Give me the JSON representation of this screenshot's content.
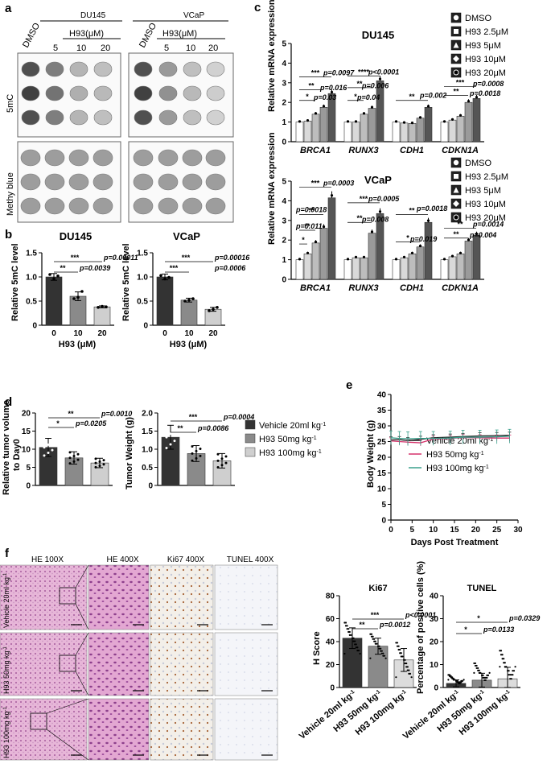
{
  "panels": {
    "a": {
      "label": "a",
      "cell_lines": [
        "DU145",
        "VCaP"
      ],
      "dose_header": "H93(μM)",
      "lane_labels": [
        "DMSO",
        "5",
        "10",
        "20"
      ],
      "row_labels": [
        "5mC",
        "Methy blue"
      ]
    },
    "b": {
      "label": "b",
      "charts": [
        {
          "title": "DU145",
          "ylabel": "Relative 5mC level",
          "xlabel": "H93 (μM)",
          "categories": [
            "0",
            "10",
            "20"
          ],
          "values": [
            1.0,
            0.6,
            0.38
          ],
          "errors": [
            0.07,
            0.09,
            0.02
          ],
          "points": [
            [
              1.05,
              0.96,
              1.02
            ],
            [
              0.55,
              0.58,
              0.7
            ],
            [
              0.37,
              0.39,
              0.38
            ]
          ],
          "yticks": [
            "0",
            "0.5",
            "1.0",
            "1.5"
          ],
          "sig": [
            [
              "**",
              "p=0.0039"
            ],
            [
              "***",
              "p=0.00011"
            ]
          ]
        },
        {
          "title": "VCaP",
          "ylabel": "Relative 5mC level",
          "xlabel": "H93 (μM)",
          "categories": [
            "0",
            "10",
            "20"
          ],
          "values": [
            1.0,
            0.52,
            0.33
          ],
          "errors": [
            0.06,
            0.04,
            0.04
          ],
          "points": [
            [
              1.03,
              0.96,
              0.99
            ],
            [
              0.5,
              0.52,
              0.55
            ],
            [
              0.3,
              0.33,
              0.37
            ]
          ],
          "yticks": [
            "0",
            "0.5",
            "1.0",
            "1.5"
          ],
          "sig": [
            [
              "***",
              "p=0.0006"
            ],
            [
              "***",
              "p=0.00016"
            ]
          ]
        }
      ]
    },
    "c": {
      "label": "c",
      "ylabel": "Relative mRNA expression",
      "legend": [
        "DMSO",
        "H93 2.5μM",
        "H93 5μM",
        "H93 10μM",
        "H93 20μM"
      ],
      "colors": [
        "#ffffff",
        "#d9d9d9",
        "#bdbdbd",
        "#9a9a9a",
        "#555555"
      ],
      "genes": [
        "BRCA1",
        "RUNX3",
        "CDH1",
        "CDKN1A"
      ],
      "charts": [
        {
          "title": "DU145",
          "yticks": [
            "0",
            "1",
            "2",
            "3",
            "4",
            "5"
          ],
          "values": [
            [
              1.0,
              1.05,
              1.4,
              1.75,
              2.45
            ],
            [
              1.0,
              1.0,
              1.4,
              1.7,
              3.1
            ],
            [
              1.0,
              0.95,
              0.93,
              1.2,
              1.75
            ],
            [
              1.0,
              1.1,
              1.3,
              2.0,
              2.2
            ]
          ],
          "annotations": [
            "***",
            "p=0.0097",
            "**",
            "p=0.016",
            "*",
            "p=0.03",
            "****",
            "p<0.0001",
            "**",
            "p=0.006",
            "*",
            "p=0.04",
            "**",
            "p=0.002",
            "***",
            "p=0.0008",
            "**",
            "p=0.0018"
          ]
        },
        {
          "title": "VCaP",
          "yticks": [
            "0",
            "1",
            "2",
            "3",
            "4",
            "5"
          ],
          "values": [
            [
              1.0,
              1.3,
              1.85,
              2.6,
              4.15
            ],
            [
              1.0,
              1.1,
              1.1,
              2.35,
              3.35
            ],
            [
              1.0,
              1.1,
              1.3,
              1.65,
              2.9
            ],
            [
              1.0,
              1.15,
              1.3,
              1.95,
              2.25
            ]
          ],
          "annotations": [
            "***",
            "p=0.0003",
            "**",
            "p=0.0018",
            "**",
            "p=0.011",
            "*",
            "***",
            "p=0.0005",
            "**",
            "p=0.008",
            "**",
            "p=0.0018",
            "*",
            "p=0.019",
            "**",
            "p=0.0014",
            "**",
            "p=0.004"
          ]
        }
      ]
    },
    "d": {
      "label": "d",
      "legend": [
        "Vehicle 20ml kg",
        "H93 50mg kg",
        "H93 100mg kg"
      ],
      "legend_sup": "-1",
      "charts": [
        {
          "ylabel": "Relative tumor volume to Day0",
          "yticks": [
            "0",
            "5",
            "10",
            "15",
            "20"
          ],
          "values": [
            10.5,
            7.6,
            6.2
          ],
          "errors": [
            2.5,
            1.7,
            1.3
          ],
          "sig": [
            [
              "*",
              "p=0.0205"
            ],
            [
              "**",
              "p=0.0010"
            ]
          ]
        },
        {
          "ylabel": "Tumor Weight (g)",
          "yticks": [
            "0",
            "0.5",
            "1.0",
            "1.5",
            "2.0"
          ],
          "values": [
            1.33,
            0.88,
            0.68
          ],
          "errors": [
            0.33,
            0.22,
            0.2
          ],
          "sig": [
            [
              "**",
              "p=0.0086"
            ],
            [
              "***",
              "p=0.0004"
            ]
          ]
        }
      ]
    },
    "e": {
      "label": "e",
      "ylabel": "Body Weight (g)",
      "xlabel": "Days Post Treatment",
      "xticks": [
        "0",
        "5",
        "10",
        "15",
        "20",
        "25",
        "30"
      ],
      "yticks": [
        "0",
        "5",
        "10",
        "15",
        "20",
        "25",
        "30",
        "35",
        "40"
      ],
      "series": [
        {
          "name": "Vehicle 20ml kg",
          "color": "#222222",
          "x": [
            0,
            2,
            4,
            7,
            10,
            14,
            17,
            21,
            25,
            28
          ],
          "y": [
            25.5,
            25.6,
            25.3,
            25.7,
            26.2,
            26.4,
            26.6,
            26.8,
            26.9,
            27.0
          ]
        },
        {
          "name": "H93 50mg kg",
          "color": "#d6336c",
          "x": [
            0,
            2,
            4,
            7,
            10,
            14,
            17,
            21,
            25,
            28
          ],
          "y": [
            25.2,
            25.0,
            24.8,
            24.6,
            25.8,
            26.0,
            26.3,
            26.2,
            26.1,
            26.1
          ]
        },
        {
          "name": "H93 100mg kg",
          "color": "#3aa08c",
          "x": [
            0,
            2,
            4,
            7,
            10,
            14,
            17,
            21,
            25,
            28
          ],
          "y": [
            26.2,
            26.0,
            25.9,
            26.0,
            26.0,
            26.1,
            26.4,
            26.4,
            26.5,
            26.7
          ]
        }
      ],
      "legend_sup": "-1"
    },
    "f": {
      "label": "f",
      "col_headers": [
        "HE 100X",
        "HE 400X",
        "Ki67 400X",
        "TUNEL 400X"
      ],
      "row_labels": [
        "Vehicle 20ml kg",
        "H93 50mg kg",
        "H93 100mg kg"
      ],
      "sup": "-1",
      "charts": [
        {
          "title": "Ki67",
          "ylabel": "H Score",
          "yticks": [
            "0",
            "20",
            "40",
            "60",
            "80"
          ],
          "values": [
            43,
            36,
            24
          ],
          "errors": [
            9,
            7,
            10
          ],
          "sig": [
            [
              "**",
              "p=0.0012"
            ],
            [
              "***",
              "p<0.0001"
            ]
          ]
        },
        {
          "title": "TUNEL",
          "ylabel": "Percentage of positive cells (%)",
          "yticks": [
            "0",
            "10",
            "20",
            "30",
            "40"
          ],
          "values": [
            1.8,
            3.2,
            3.8
          ],
          "errors": [
            1.5,
            3.0,
            5.0
          ],
          "sig": [
            [
              "*",
              "p=0.0133"
            ],
            [
              "*",
              "p=0.0329"
            ]
          ]
        }
      ],
      "x_categories": [
        "Vehicle 20ml kg",
        "H93 50mg kg",
        "H93 100mg kg"
      ]
    }
  }
}
